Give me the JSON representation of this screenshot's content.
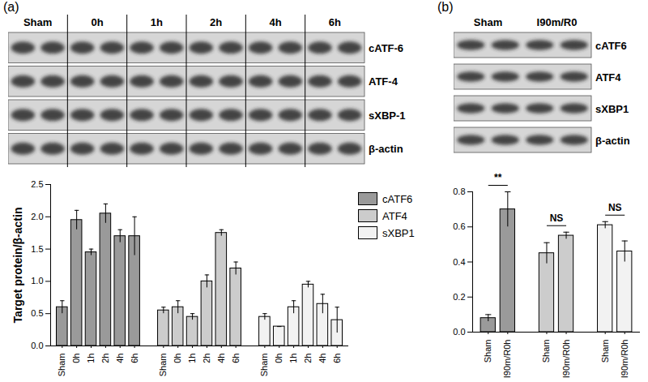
{
  "figure": {
    "panel_labels": [
      "(a)",
      "(b)"
    ],
    "blots": [
      {
        "lanes": [
          "Sham",
          "0h",
          "1h",
          "2h",
          "4h",
          "6h"
        ],
        "rows": [
          "cATF-6",
          "ATF-4",
          "sXBP-1",
          "β-actin"
        ]
      },
      {
        "lanes": [
          "Sham",
          "I90m/R0"
        ],
        "rows": [
          "cATF6",
          "ATF4",
          "sXBP1",
          "β-actin"
        ]
      }
    ]
  },
  "chart_data": [
    {
      "type": "bar",
      "y_label": "Target protein/β-actin",
      "categories": [
        "Sham",
        "0h",
        "1h",
        "2h",
        "4h",
        "6h"
      ],
      "series": [
        {
          "name": "cATF6",
          "color": "#9a9a9a",
          "values": [
            0.6,
            1.95,
            1.45,
            2.05,
            1.7,
            1.7
          ],
          "errors": [
            0.1,
            0.15,
            0.05,
            0.15,
            0.1,
            0.3
          ]
        },
        {
          "name": "ATF4",
          "color": "#cccccc",
          "values": [
            0.55,
            0.6,
            0.45,
            1.0,
            1.75,
            1.2
          ],
          "errors": [
            0.05,
            0.1,
            0.05,
            0.1,
            0.05,
            0.1
          ]
        },
        {
          "name": "sXBP1",
          "color": "#f2f2f2",
          "values": [
            0.45,
            0.3,
            0.6,
            0.95,
            0.65,
            0.4
          ],
          "errors": [
            0.05,
            0.0,
            0.1,
            0.05,
            0.15,
            0.2
          ]
        }
      ],
      "ylim": [
        0,
        2.5
      ],
      "yticks": [
        {
          "value": 0,
          "label": "0.0"
        },
        {
          "value": 0.5,
          "label": "0.5"
        },
        {
          "value": 1,
          "label": "1.0"
        },
        {
          "value": 1.5,
          "label": "1.5"
        },
        {
          "value": 2,
          "label": "2.0"
        },
        {
          "value": 2.5,
          "label": "2.5"
        }
      ],
      "legend": "right"
    },
    {
      "type": "bar",
      "categories": [
        "Sham",
        "I90m/R0h"
      ],
      "series": [
        {
          "name": "cATF6",
          "color": "#9a9a9a",
          "values": [
            0.08,
            0.7
          ],
          "errors": [
            0.02,
            0.1
          ]
        },
        {
          "name": "ATF4",
          "color": "#cccccc",
          "values": [
            0.45,
            0.55
          ],
          "errors": [
            0.06,
            0.02
          ]
        },
        {
          "name": "sXBP1",
          "color": "#f2f2f2",
          "values": [
            0.61,
            0.46
          ],
          "errors": [
            0.02,
            0.06
          ]
        }
      ],
      "ylim": [
        0,
        0.8
      ],
      "yticks": [
        {
          "value": 0,
          "label": "0.0"
        },
        {
          "value": 0.2,
          "label": "0.2"
        },
        {
          "value": 0.4,
          "label": "0.4"
        },
        {
          "value": 0.6,
          "label": "0.6"
        },
        {
          "value": 0.8,
          "label": "0.8"
        }
      ],
      "annotations": [
        {
          "text": "**",
          "series": "cATF6"
        },
        {
          "text": "NS",
          "series": "ATF4"
        },
        {
          "text": "NS",
          "series": "sXBP1"
        }
      ]
    }
  ]
}
